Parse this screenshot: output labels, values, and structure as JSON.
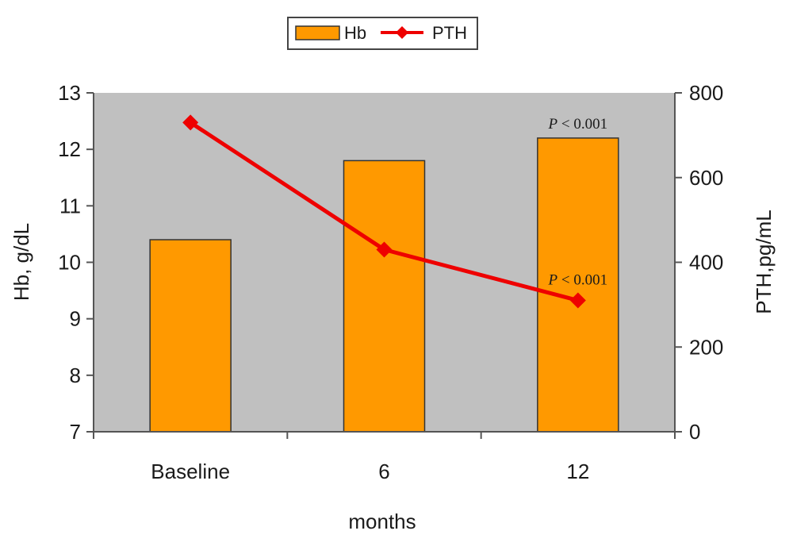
{
  "chart_data": {
    "type": "bar",
    "categories": [
      "Baseline",
      "6",
      "12"
    ],
    "xlabel": "months",
    "series": [
      {
        "name": "Hb",
        "type": "bar",
        "axis": "left",
        "color": "#ff9900",
        "values": [
          10.4,
          11.8,
          12.2
        ]
      },
      {
        "name": "PTH",
        "type": "line",
        "axis": "right",
        "color": "#ee0000",
        "marker": "diamond",
        "values": [
          730,
          430,
          310
        ]
      }
    ],
    "y_left": {
      "label": "Hb, g/dL",
      "range": [
        7,
        13
      ],
      "ticks": [
        7,
        8,
        9,
        10,
        11,
        12,
        13
      ]
    },
    "y_right": {
      "label": "PTH,pg/mL",
      "range": [
        0,
        800
      ],
      "ticks": [
        0,
        200,
        400,
        600,
        800
      ]
    },
    "plot_background": "#c0c0c0",
    "grid": false,
    "legend_position": "top-center",
    "annotations": [
      {
        "italic": "P",
        "text": " < 0.001",
        "category": "12",
        "anchor": "Hb"
      },
      {
        "italic": "P",
        "text": " < 0.001",
        "category": "12",
        "anchor": "PTH"
      }
    ]
  }
}
